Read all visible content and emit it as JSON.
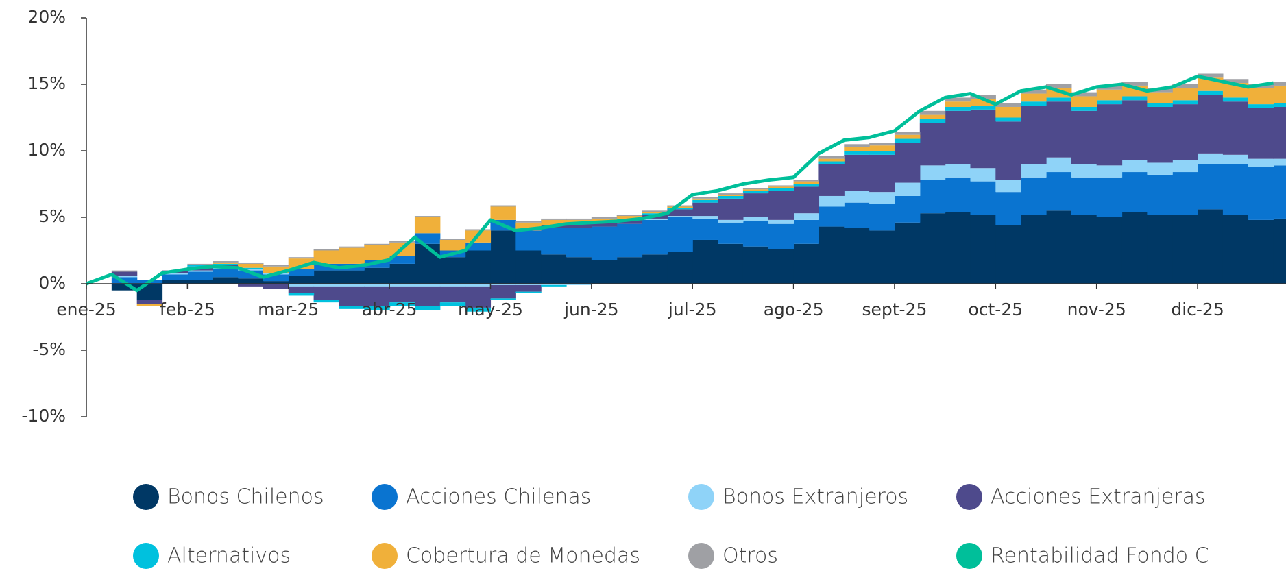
{
  "chart_data": {
    "type": "stacked_area_line",
    "categories": [
      "ene-25",
      null,
      null,
      null,
      "feb-25",
      null,
      null,
      null,
      "mar-25",
      null,
      null,
      null,
      "abr-25",
      null,
      null,
      null,
      "may-25",
      null,
      null,
      null,
      "jun-25",
      null,
      null,
      null,
      "jul-25",
      null,
      null,
      null,
      "ago-25",
      null,
      null,
      null,
      "sept-25",
      null,
      null,
      null,
      "oct-25",
      null,
      null,
      null,
      "nov-25",
      null,
      null,
      null,
      "dic-25",
      null,
      null,
      null
    ],
    "series": [
      {
        "name": "Bonos Chilenos",
        "color": "#003865",
        "values": [
          0,
          -0.5,
          -1.2,
          0.3,
          0.3,
          0.5,
          0.4,
          0.2,
          0.6,
          1.0,
          1.0,
          1.2,
          1.5,
          3.0,
          2.0,
          2.5,
          4.0,
          2.5,
          2.2,
          2.0,
          1.8,
          2.0,
          2.2,
          2.4,
          3.3,
          3.0,
          2.8,
          2.6,
          3.0,
          4.3,
          4.2,
          4.0,
          4.6,
          5.3,
          5.4,
          5.2,
          4.4,
          5.2,
          5.5,
          5.2,
          5.0,
          5.4,
          5.2,
          5.2,
          5.6,
          5.2,
          4.8,
          4.9
        ]
      },
      {
        "name": "Acciones Chilenas",
        "color": "#0a74d0",
        "values": [
          0,
          0.5,
          0.3,
          0.4,
          0.6,
          0.6,
          0.6,
          0.5,
          0.5,
          0.5,
          0.5,
          0.6,
          0.6,
          0.8,
          0.5,
          0.6,
          0.8,
          1.5,
          2.0,
          2.2,
          2.5,
          2.5,
          2.6,
          2.6,
          1.6,
          1.6,
          1.9,
          1.9,
          1.8,
          1.5,
          1.9,
          2.0,
          2.0,
          2.5,
          2.6,
          2.5,
          2.5,
          2.8,
          2.9,
          2.8,
          3.0,
          3.0,
          3.0,
          3.2,
          3.4,
          3.8,
          4.0,
          4.0
        ]
      },
      {
        "name": "Bonos Extranjeros",
        "color": "#8fd3f8",
        "values": [
          0,
          0.1,
          0,
          0.1,
          0.1,
          0.1,
          0.1,
          0.1,
          -0.2,
          -0.2,
          -0.2,
          -0.2,
          -0.2,
          -0.2,
          -0.2,
          -0.2,
          -0.1,
          -0.1,
          -0.1,
          -0.1,
          0,
          0,
          0.1,
          0.1,
          0.2,
          0.2,
          0.3,
          0.3,
          0.5,
          0.8,
          0.9,
          0.9,
          1.0,
          1.1,
          1.0,
          1.0,
          0.9,
          1.0,
          1.1,
          1.0,
          0.9,
          0.9,
          0.9,
          0.9,
          0.8,
          0.7,
          0.6,
          0.5
        ]
      },
      {
        "name": "Acciones Extranjeras",
        "color": "#4e4a8c",
        "values": [
          0,
          0.3,
          -0.3,
          0.2,
          0.3,
          0.2,
          -0.2,
          -0.4,
          -0.5,
          -1.0,
          -1.5,
          -1.5,
          -1.2,
          -1.5,
          -1.2,
          -1.6,
          -1.0,
          -0.5,
          0.2,
          0.3,
          0.3,
          0.3,
          0.3,
          0.5,
          1.0,
          1.6,
          1.8,
          2.2,
          2.0,
          2.4,
          2.7,
          2.8,
          3.0,
          3.2,
          4.0,
          4.4,
          4.4,
          4.4,
          4.2,
          4.0,
          4.6,
          4.5,
          4.2,
          4.2,
          4.4,
          4.0,
          3.8,
          3.9
        ]
      },
      {
        "name": "Alternativos",
        "color": "#00c1de",
        "values": [
          0,
          0,
          0,
          0,
          0.1,
          0.1,
          0.1,
          0,
          -0.2,
          -0.2,
          -0.2,
          -0.3,
          -0.3,
          -0.3,
          -0.3,
          -0.3,
          -0.1,
          -0.1,
          -0.1,
          0,
          0.1,
          0.1,
          0.1,
          0.1,
          0.2,
          0.2,
          0.2,
          0.2,
          0.2,
          0.2,
          0.3,
          0.3,
          0.3,
          0.3,
          0.3,
          0.3,
          0.3,
          0.3,
          0.3,
          0.3,
          0.3,
          0.3,
          0.3,
          0.3,
          0.3,
          0.3,
          0.3,
          0.3
        ]
      },
      {
        "name": "Cobertura de Monedas",
        "color": "#f0b03a",
        "values": [
          0,
          0,
          -0.2,
          0,
          0,
          0.1,
          0.3,
          0.5,
          0.8,
          1.0,
          1.2,
          1.1,
          1.0,
          1.2,
          0.8,
          0.9,
          1.0,
          0.6,
          0.4,
          0.3,
          0.2,
          0.2,
          0.1,
          0.1,
          0.1,
          0.1,
          0.1,
          0.1,
          0.2,
          0.2,
          0.3,
          0.4,
          0.3,
          0.3,
          0.4,
          0.5,
          0.8,
          0.6,
          0.7,
          0.8,
          0.8,
          0.8,
          0.8,
          0.9,
          1.0,
          1.1,
          1.2,
          1.3
        ]
      },
      {
        "name": "Otros",
        "color": "#9fa0a4",
        "values": [
          0,
          0.1,
          0,
          0,
          0.1,
          0.1,
          0.1,
          0.1,
          0.1,
          0.1,
          0.1,
          0.1,
          0.1,
          0.1,
          0.1,
          0.1,
          0.1,
          0.1,
          0.1,
          0.1,
          0.1,
          0.1,
          0.1,
          0.1,
          0.1,
          0.1,
          0.1,
          0.1,
          0.1,
          0.2,
          0.2,
          0.2,
          0.2,
          0.3,
          0.3,
          0.3,
          0.3,
          0.3,
          0.3,
          0.3,
          0.3,
          0.3,
          0.3,
          0.3,
          0.3,
          0.3,
          0.3,
          0.3
        ]
      }
    ],
    "line": {
      "name": "Rentabilidad Fondo C",
      "color": "#00bf9a",
      "values": [
        0,
        0.7,
        -0.5,
        0.8,
        1.1,
        1.3,
        1.2,
        0.5,
        1.0,
        1.6,
        1.2,
        1.4,
        1.8,
        3.5,
        2.0,
        2.5,
        4.8,
        4.0,
        4.2,
        4.5,
        4.6,
        4.7,
        4.9,
        5.3,
        6.7,
        7.0,
        7.5,
        7.8,
        8.0,
        9.8,
        10.8,
        11.0,
        11.5,
        13.0,
        14.0,
        14.3,
        13.5,
        14.5,
        14.8,
        14.2,
        14.8,
        15.0,
        14.5,
        14.8,
        15.6,
        15.2,
        14.8,
        15.1
      ]
    },
    "ylim": [
      -10,
      20
    ],
    "yticks": [
      {
        "value": -10,
        "label": "-10%"
      },
      {
        "value": -5,
        "label": "-5%"
      },
      {
        "value": 0,
        "label": "0%"
      },
      {
        "value": 5,
        "label": "5%"
      },
      {
        "value": 10,
        "label": "10%"
      },
      {
        "value": 15,
        "label": "15%"
      },
      {
        "value": 20,
        "label": "20%"
      }
    ],
    "grid": false
  }
}
